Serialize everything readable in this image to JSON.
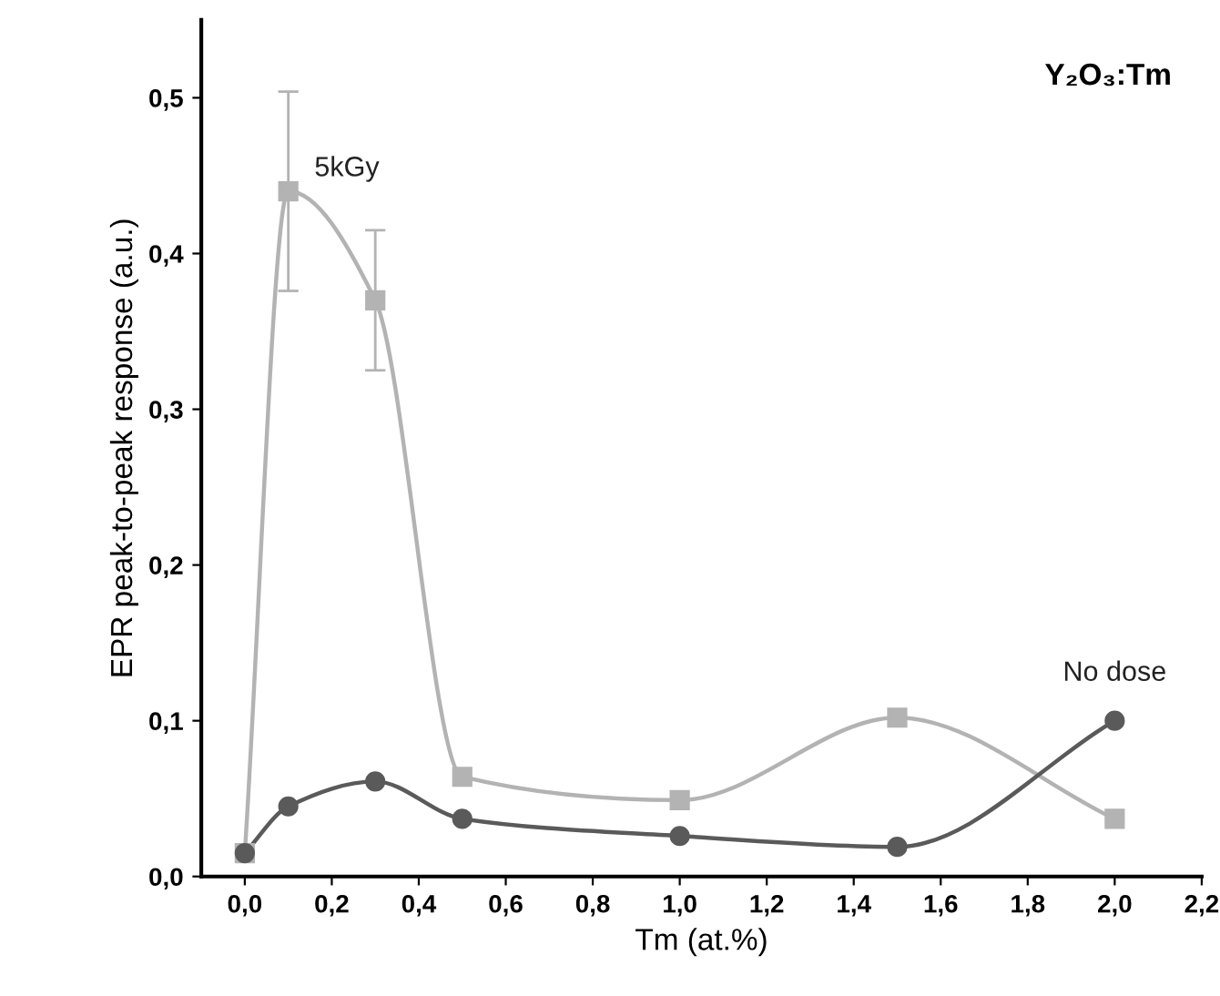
{
  "chart_data": {
    "type": "line",
    "title": "Y₂O₃:Tm",
    "xlabel": "Tm (at.%)",
    "ylabel": "EPR peak-to-peak response (a.u.)",
    "grid": false,
    "legend": false,
    "xlim": [
      -0.1,
      2.2
    ],
    "ylim": [
      0,
      0.55
    ],
    "xticks": [
      {
        "value": 0,
        "label": "0,0"
      },
      {
        "value": 0.2,
        "label": "0,2"
      },
      {
        "value": 0.4,
        "label": "0,4"
      },
      {
        "value": 0.6,
        "label": "0,6"
      },
      {
        "value": 0.8,
        "label": "0,8"
      },
      {
        "value": 1.0,
        "label": "1,0"
      },
      {
        "value": 1.2,
        "label": "1,2"
      },
      {
        "value": 1.4,
        "label": "1,4"
      },
      {
        "value": 1.6,
        "label": "1,6"
      },
      {
        "value": 1.8,
        "label": "1,8"
      },
      {
        "value": 2.0,
        "label": "2,0"
      },
      {
        "value": 2.2,
        "label": "2,2"
      }
    ],
    "yticks": [
      {
        "value": 0,
        "label": "0,0"
      },
      {
        "value": 0.1,
        "label": "0,1"
      },
      {
        "value": 0.2,
        "label": "0,2"
      },
      {
        "value": 0.3,
        "label": "0,3"
      },
      {
        "value": 0.4,
        "label": "0,4"
      },
      {
        "value": 0.5,
        "label": "0,5"
      }
    ],
    "series": [
      {
        "name": "5kGy",
        "color": "#b3b3b3",
        "marker": "square",
        "x": [
          0,
          0.1,
          0.3,
          0.5,
          1.0,
          1.5,
          2.0
        ],
        "values": [
          0.015,
          0.44,
          0.37,
          0.064,
          0.049,
          0.102,
          0.037
        ],
        "errors": [
          null,
          0.064,
          0.045,
          null,
          null,
          null,
          null
        ]
      },
      {
        "name": "No dose",
        "color": "#5a5a5a",
        "marker": "circle",
        "x": [
          0,
          0.1,
          0.3,
          0.5,
          1.0,
          1.5,
          2.0
        ],
        "values": [
          0.015,
          0.045,
          0.061,
          0.037,
          0.026,
          0.019,
          0.1
        ]
      }
    ]
  }
}
